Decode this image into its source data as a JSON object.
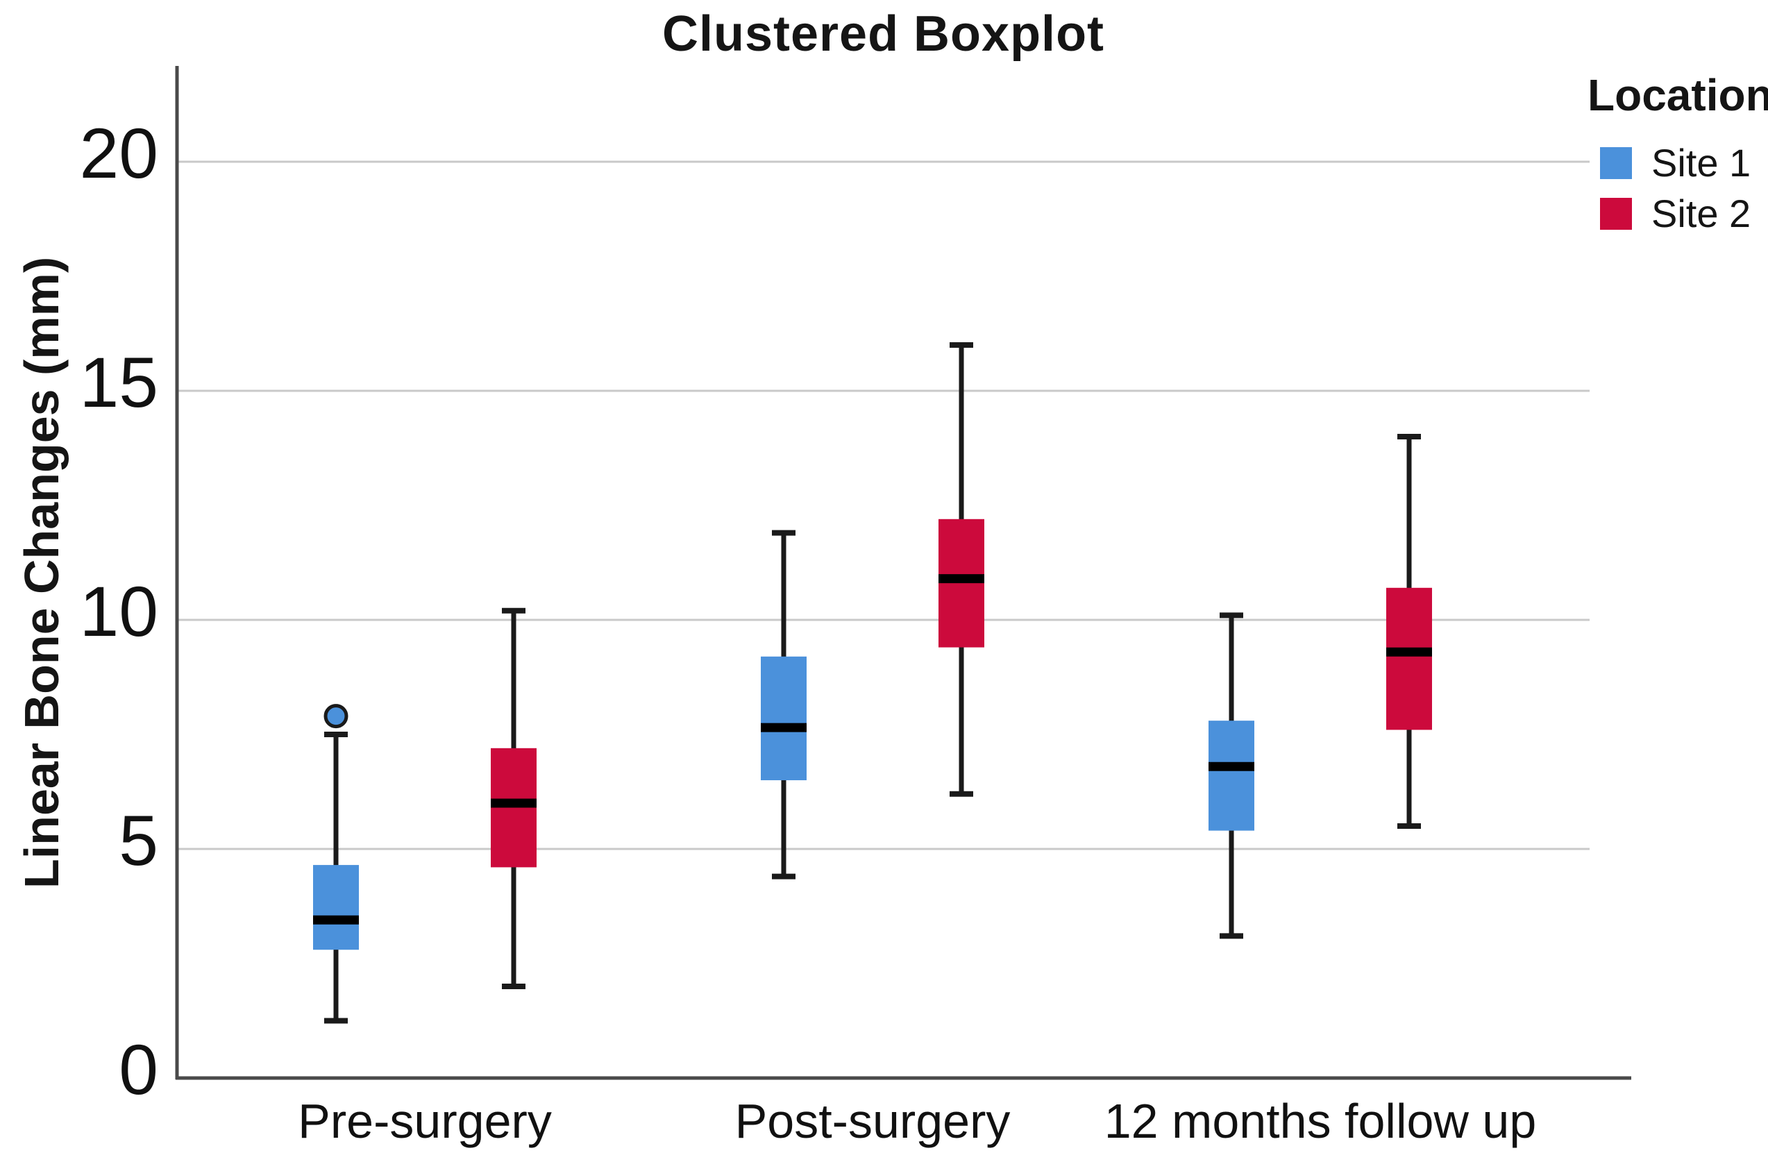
{
  "title": "Clustered Boxplot",
  "y_axis": {
    "label": "Linear Bone Changes (mm)"
  },
  "legend": {
    "title": "Location",
    "items": [
      {
        "label": "Site 1",
        "color": "#4B91DB"
      },
      {
        "label": "Site 2",
        "color": "#CC0A3C"
      }
    ]
  },
  "colors": {
    "grid": "#C9C9C9",
    "axis": "#4A4A4A",
    "whisker": "#1A1A1A",
    "median": "#000000",
    "background": "#FFFFFF"
  },
  "chart_data": {
    "type": "boxplot",
    "title": "Clustered Boxplot",
    "xlabel": "",
    "ylabel": "Linear Bone Changes (mm)",
    "ylim": [
      0,
      22
    ],
    "yticks": [
      0,
      5,
      10,
      15,
      20
    ],
    "grid": true,
    "legend_position": "top-right",
    "categories": [
      "Pre-surgery",
      "Post-surgery",
      "12 months follow up"
    ],
    "series": [
      {
        "name": "Site 1",
        "color": "#4B91DB",
        "boxes": [
          {
            "whisker_low": 1.25,
            "q1": 2.8,
            "median": 3.45,
            "q3": 4.65,
            "whisker_high": 7.5,
            "outliers": [
              7.9
            ]
          },
          {
            "whisker_low": 4.4,
            "q1": 6.5,
            "median": 7.65,
            "q3": 9.2,
            "whisker_high": 11.9,
            "outliers": []
          },
          {
            "whisker_low": 3.1,
            "q1": 5.4,
            "median": 6.8,
            "q3": 7.8,
            "whisker_high": 10.1,
            "outliers": []
          }
        ]
      },
      {
        "name": "Site 2",
        "color": "#CC0A3C",
        "boxes": [
          {
            "whisker_low": 2.0,
            "q1": 4.6,
            "median": 6.0,
            "q3": 7.2,
            "whisker_high": 10.2,
            "outliers": []
          },
          {
            "whisker_low": 6.2,
            "q1": 9.4,
            "median": 10.9,
            "q3": 12.2,
            "whisker_high": 16.0,
            "outliers": []
          },
          {
            "whisker_low": 5.5,
            "q1": 7.6,
            "median": 9.3,
            "q3": 10.7,
            "whisker_high": 14.0,
            "outliers": []
          }
        ]
      }
    ]
  }
}
